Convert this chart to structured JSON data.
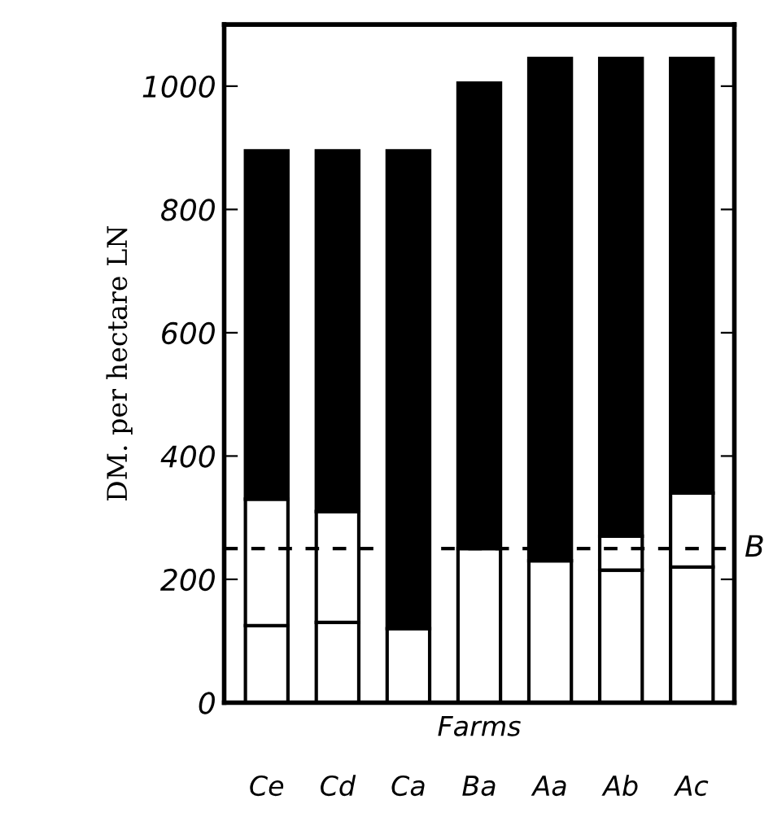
{
  "chart_data": {
    "type": "bar",
    "stacked": true,
    "xlabel": "Farms",
    "ylabel": "DM. per hectare LN",
    "categories": [
      "Ce",
      "Cd",
      "Ca",
      "Ba",
      "Aa",
      "Ab",
      "Ac"
    ],
    "series": [
      {
        "color": "#ffffff",
        "values": [
          125,
          130,
          120,
          250,
          230,
          215,
          220
        ]
      },
      {
        "color": "#ffffff",
        "values": [
          205,
          180,
          null,
          null,
          null,
          55,
          120
        ]
      },
      {
        "color": "#000000",
        "values": [
          565,
          585,
          775,
          755,
          815,
          775,
          705
        ]
      }
    ],
    "ylim": [
      0,
      1100
    ],
    "yticks": [
      0,
      200,
      400,
      600,
      800,
      1000
    ],
    "grid": false,
    "legend": false,
    "ref_lines": [
      {
        "axis": "y",
        "value": 250,
        "label": "B",
        "line_style": "dashed",
        "color": "#000000"
      }
    ]
  }
}
